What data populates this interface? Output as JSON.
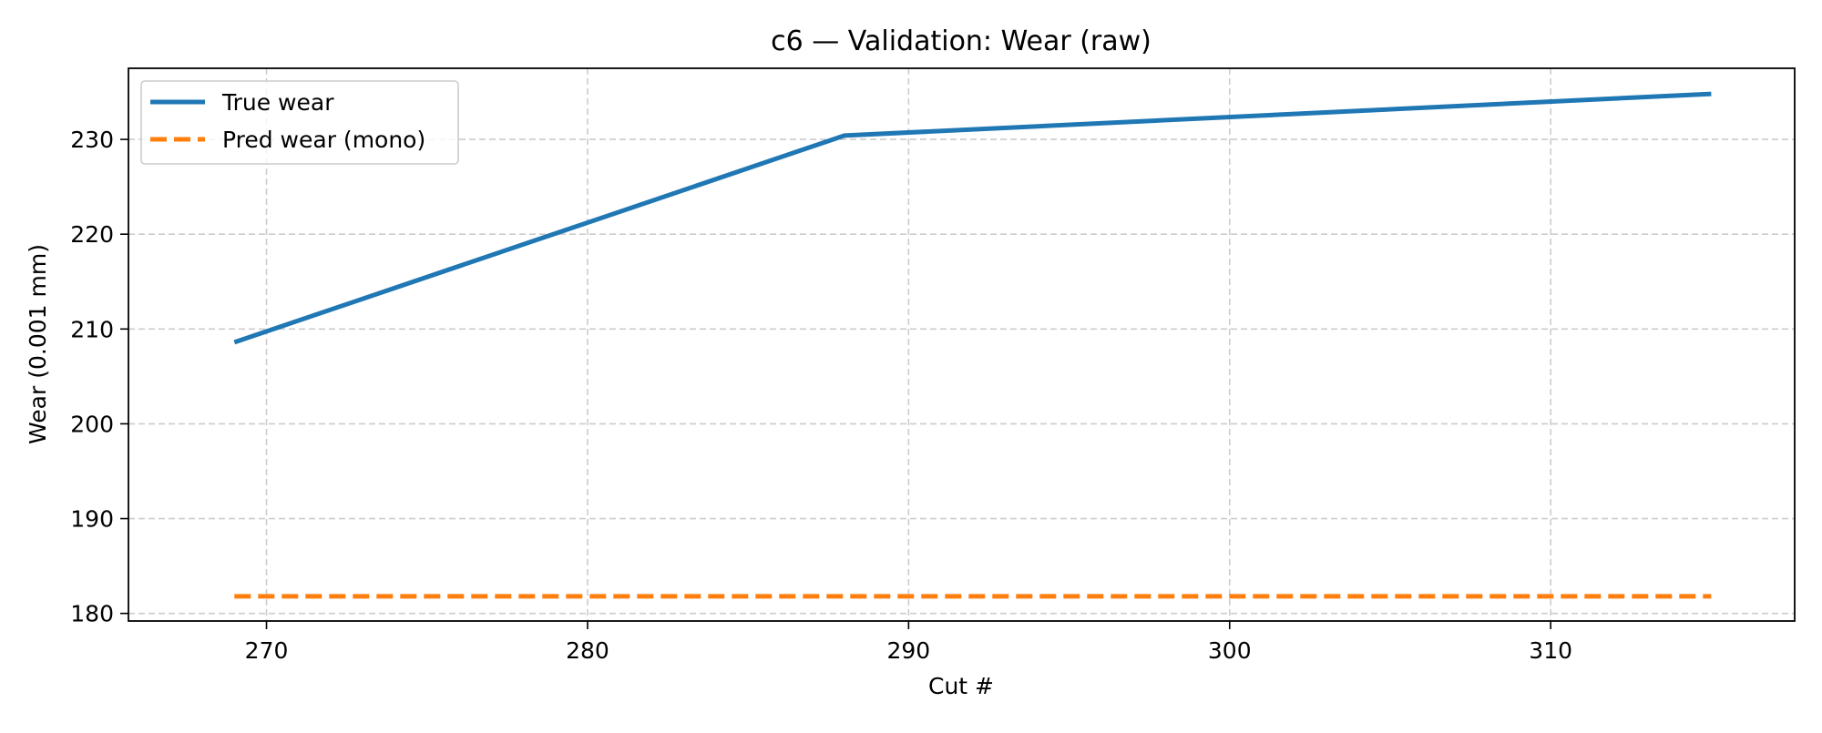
{
  "chart_data": {
    "type": "line",
    "title": "c6 — Validation: Wear (raw)",
    "xlabel": "Cut #",
    "ylabel": "Wear (0.001 mm)",
    "xlim": [
      265.7,
      317.6
    ],
    "ylim": [
      179.2,
      237.5
    ],
    "xticks": [
      270,
      280,
      290,
      300,
      310
    ],
    "yticks": [
      180,
      190,
      200,
      210,
      220,
      230
    ],
    "grid": true,
    "legend_position": "upper-left",
    "series": [
      {
        "name": "True wear",
        "color": "#1f77b4",
        "style": "solid",
        "x": [
          269,
          288,
          315
        ],
        "y": [
          208.6,
          230.4,
          234.8
        ]
      },
      {
        "name": "Pred wear (mono)",
        "color": "#ff7f0e",
        "style": "dashed",
        "x": [
          269,
          315
        ],
        "y": [
          181.8,
          181.8
        ]
      }
    ]
  }
}
